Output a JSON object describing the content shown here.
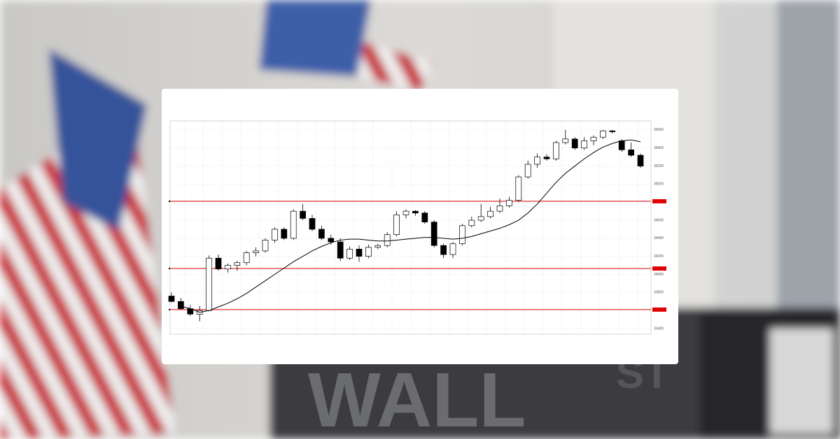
{
  "chart_data": {
    "type": "candlestick",
    "ylim": [
      33400,
      35700
    ],
    "yticks": [
      33400,
      33600,
      33800,
      34000,
      34200,
      34400,
      34600,
      34800,
      35000,
      35200,
      35400,
      35600
    ],
    "grid": true,
    "up_color": "#ffffff",
    "down_color": "#000000",
    "candles": [
      [
        33760,
        33800,
        33690,
        33700
      ],
      [
        33700,
        33740,
        33610,
        33620
      ],
      [
        33620,
        33660,
        33540,
        33560
      ],
      [
        33560,
        33650,
        33480,
        33600
      ],
      [
        33600,
        34210,
        33590,
        34180
      ],
      [
        34180,
        34220,
        34040,
        34060
      ],
      [
        34060,
        34120,
        34020,
        34100
      ],
      [
        34100,
        34150,
        34040,
        34130
      ],
      [
        34130,
        34260,
        34100,
        34240
      ],
      [
        34240,
        34300,
        34200,
        34260
      ],
      [
        34260,
        34400,
        34240,
        34380
      ],
      [
        34380,
        34520,
        34350,
        34500
      ],
      [
        34500,
        34520,
        34380,
        34400
      ],
      [
        34400,
        34720,
        34380,
        34700
      ],
      [
        34700,
        34780,
        34600,
        34620
      ],
      [
        34620,
        34660,
        34480,
        34500
      ],
      [
        34500,
        34540,
        34380,
        34400
      ],
      [
        34400,
        34440,
        34330,
        34360
      ],
      [
        34360,
        34400,
        34150,
        34180
      ],
      [
        34180,
        34310,
        34160,
        34280
      ],
      [
        34280,
        34320,
        34140,
        34200
      ],
      [
        34200,
        34330,
        34180,
        34300
      ],
      [
        34300,
        34340,
        34280,
        34320
      ],
      [
        34320,
        34470,
        34300,
        34440
      ],
      [
        34440,
        34700,
        34420,
        34660
      ],
      [
        34660,
        34720,
        34620,
        34700
      ],
      [
        34700,
        34710,
        34650,
        34680
      ],
      [
        34680,
        34700,
        34560,
        34580
      ],
      [
        34580,
        34600,
        34300,
        34320
      ],
      [
        34320,
        34340,
        34180,
        34220
      ],
      [
        34220,
        34360,
        34180,
        34340
      ],
      [
        34340,
        34560,
        34320,
        34540
      ],
      [
        34540,
        34640,
        34520,
        34600
      ],
      [
        34600,
        34780,
        34580,
        34640
      ],
      [
        34640,
        34750,
        34620,
        34700
      ],
      [
        34700,
        34840,
        34680,
        34760
      ],
      [
        34760,
        34860,
        34740,
        34820
      ],
      [
        34820,
        35100,
        34800,
        35080
      ],
      [
        35080,
        35260,
        35060,
        35220
      ],
      [
        35220,
        35340,
        35180,
        35300
      ],
      [
        35300,
        35330,
        35260,
        35280
      ],
      [
        35280,
        35480,
        35260,
        35460
      ],
      [
        35460,
        35600,
        35440,
        35500
      ],
      [
        35500,
        35520,
        35380,
        35400
      ],
      [
        35400,
        35520,
        35380,
        35480
      ],
      [
        35480,
        35540,
        35430,
        35520
      ],
      [
        35520,
        35600,
        35500,
        35590
      ],
      [
        35590,
        35600,
        35560,
        35580
      ],
      [
        35480,
        35500,
        35360,
        35380
      ],
      [
        35380,
        35460,
        35300,
        35320
      ],
      [
        35320,
        35340,
        35180,
        35200
      ]
    ],
    "series": [
      {
        "color": "#000000",
        "values": [
          null,
          33650,
          33620,
          33580,
          33600,
          33640,
          33680,
          33730,
          33790,
          33860,
          33930,
          34000,
          34070,
          34140,
          34200,
          34260,
          34310,
          34350,
          34380,
          34390,
          34390,
          34380,
          34370,
          34370,
          34380,
          34390,
          34400,
          34410,
          34410,
          34400,
          34390,
          34400,
          34420,
          34450,
          34480,
          34510,
          34550,
          34600,
          34680,
          34780,
          34900,
          35020,
          35120,
          35200,
          35280,
          35350,
          35410,
          35450,
          35480,
          35490,
          35470
        ]
      }
    ],
    "levels": [
      34810,
      34065,
      33610
    ],
    "level_color": "#e00000"
  },
  "background": {
    "sign": [
      "WALL",
      "ST"
    ]
  }
}
